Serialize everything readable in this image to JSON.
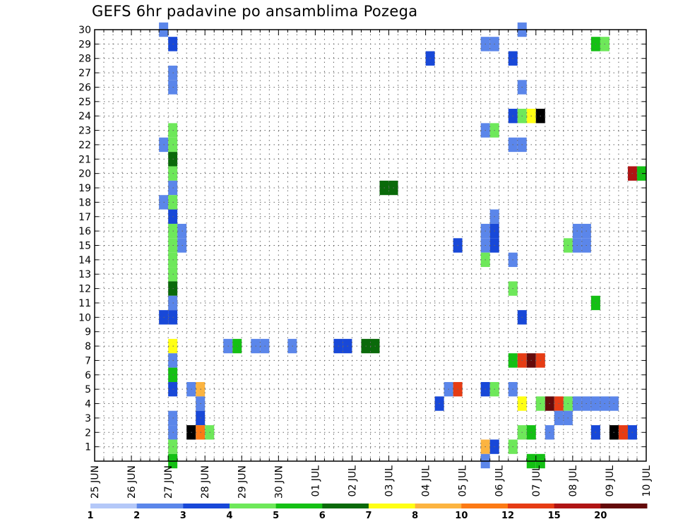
{
  "chart_data": {
    "type": "heatmap",
    "title": "GEFS 6hr padavine po ansamblima Pozega",
    "xlabel": "",
    "ylabel": "",
    "x_ticks": [
      "25 JUN",
      "26 JUN",
      "27 JUN",
      "28 JUN",
      "29 JUN",
      "30 JUN",
      "01 JUL",
      "02 JUL",
      "03 JUL",
      "04 JUL",
      "05 JUL",
      "06 JUL",
      "07 JUL",
      "08 JUL",
      "09 JUL",
      "10 JUL"
    ],
    "y_ticks": [
      "1",
      "2",
      "3",
      "4",
      "5",
      "6",
      "7",
      "8",
      "9",
      "10",
      "11",
      "12",
      "13",
      "14",
      "15",
      "16",
      "17",
      "18",
      "19",
      "20",
      "21",
      "22",
      "23",
      "24",
      "25",
      "26",
      "27",
      "28",
      "29",
      "30"
    ],
    "xlim_steps": [
      0,
      60
    ],
    "ylim": [
      0,
      30
    ],
    "grid": true,
    "legend": {
      "placement": "bottom",
      "labels": [
        "1",
        "2",
        "3",
        "4",
        "5",
        "6",
        "7",
        "8",
        "10",
        "12",
        "15",
        "20"
      ],
      "colors": [
        "#b4c8f8",
        "#5b86ea",
        "#1848d8",
        "#6ee85a",
        "#14c014",
        "#0a6a0a",
        "#ffff14",
        "#fcb440",
        "#fc7a14",
        "#e63c14",
        "#b01414",
        "#640a0a"
      ]
    },
    "cells": [
      [
        7.5,
        30,
        1
      ],
      [
        8.5,
        29,
        2
      ],
      [
        8.5,
        27,
        1
      ],
      [
        8.5,
        26,
        1
      ],
      [
        8.5,
        23,
        3
      ],
      [
        7.5,
        22,
        1
      ],
      [
        8.5,
        22,
        3
      ],
      [
        8.5,
        21,
        5
      ],
      [
        8.5,
        20,
        3
      ],
      [
        8.5,
        19,
        1
      ],
      [
        7.5,
        18,
        1
      ],
      [
        8.5,
        18,
        3
      ],
      [
        8.5,
        17,
        2
      ],
      [
        8.5,
        16,
        3
      ],
      [
        9.5,
        16,
        1
      ],
      [
        8.5,
        15,
        3
      ],
      [
        9.5,
        15,
        1
      ],
      [
        8.5,
        14,
        3
      ],
      [
        8.5,
        13,
        3
      ],
      [
        8.5,
        12,
        5
      ],
      [
        8.5,
        11,
        1
      ],
      [
        7.5,
        10,
        2
      ],
      [
        8.5,
        10,
        2
      ],
      [
        8.5,
        8,
        6
      ],
      [
        8.5,
        7,
        1
      ],
      [
        8.5,
        6,
        4
      ],
      [
        8.5,
        5,
        2
      ],
      [
        8.5,
        3,
        1
      ],
      [
        8.5,
        2,
        1
      ],
      [
        8.5,
        1,
        3
      ],
      [
        8.5,
        0,
        4
      ],
      [
        10.5,
        5,
        1
      ],
      [
        11.5,
        5,
        7
      ],
      [
        11.5,
        4,
        1
      ],
      [
        11.5,
        3,
        2
      ],
      [
        10.5,
        2,
        12
      ],
      [
        11.5,
        2,
        8
      ],
      [
        12.5,
        2,
        3
      ],
      [
        14.5,
        8,
        1
      ],
      [
        15.5,
        8,
        4
      ],
      [
        17.5,
        8,
        1
      ],
      [
        18.5,
        8,
        1
      ],
      [
        21.5,
        8,
        1
      ],
      [
        26.5,
        8,
        2
      ],
      [
        27.5,
        8,
        2
      ],
      [
        29.5,
        8,
        5
      ],
      [
        30.5,
        8,
        5
      ],
      [
        31.5,
        19,
        5
      ],
      [
        32.5,
        19,
        5
      ],
      [
        36.5,
        28,
        2
      ],
      [
        37.5,
        4,
        2
      ],
      [
        39.5,
        15,
        2
      ],
      [
        38.5,
        5,
        1
      ],
      [
        39.5,
        5,
        9
      ],
      [
        42.5,
        29,
        1
      ],
      [
        43.5,
        29,
        1
      ],
      [
        42.5,
        23,
        1
      ],
      [
        43.5,
        23,
        3
      ],
      [
        42.5,
        16,
        1
      ],
      [
        43.5,
        16,
        2
      ],
      [
        42.5,
        15,
        1
      ],
      [
        43.5,
        15,
        2
      ],
      [
        43.5,
        17,
        1
      ],
      [
        42.5,
        14,
        3
      ],
      [
        42.5,
        5,
        2
      ],
      [
        43.5,
        5,
        3
      ],
      [
        42.5,
        1,
        7
      ],
      [
        43.5,
        1,
        2
      ],
      [
        42.5,
        0,
        1
      ],
      [
        45.5,
        28,
        2
      ],
      [
        46.5,
        30,
        1
      ],
      [
        46.5,
        26,
        1
      ],
      [
        45.5,
        24,
        2
      ],
      [
        46.5,
        24,
        3
      ],
      [
        47.5,
        24,
        6
      ],
      [
        48.5,
        24,
        12
      ],
      [
        45.5,
        22,
        1
      ],
      [
        46.5,
        22,
        1
      ],
      [
        45.5,
        14,
        1
      ],
      [
        45.5,
        12,
        3
      ],
      [
        46.5,
        10,
        2
      ],
      [
        45.5,
        7,
        4
      ],
      [
        46.5,
        7,
        9
      ],
      [
        47.5,
        7,
        11
      ],
      [
        48.5,
        7,
        9
      ],
      [
        45.5,
        5,
        1
      ],
      [
        46.5,
        4,
        6
      ],
      [
        48.5,
        4,
        3
      ],
      [
        49.5,
        4,
        11
      ],
      [
        50.5,
        4,
        9
      ],
      [
        51.5,
        4,
        3
      ],
      [
        52.5,
        4,
        1
      ],
      [
        53.5,
        4,
        1
      ],
      [
        54.5,
        4,
        1
      ],
      [
        55.5,
        4,
        1
      ],
      [
        56.5,
        4,
        1
      ],
      [
        50.5,
        3,
        1
      ],
      [
        51.5,
        3,
        1
      ],
      [
        46.5,
        2,
        3
      ],
      [
        47.5,
        2,
        4
      ],
      [
        49.5,
        2,
        1
      ],
      [
        45.5,
        1,
        3
      ],
      [
        47.5,
        0,
        4
      ],
      [
        48.5,
        0,
        4
      ],
      [
        51.5,
        15,
        3
      ],
      [
        52.5,
        15,
        1
      ],
      [
        53.5,
        15,
        1
      ],
      [
        52.5,
        16,
        1
      ],
      [
        53.5,
        16,
        1
      ],
      [
        54.5,
        29,
        4
      ],
      [
        55.5,
        29,
        3
      ],
      [
        54.5,
        11,
        4
      ],
      [
        54.5,
        2,
        2
      ],
      [
        56.5,
        2,
        12
      ],
      [
        57.5,
        2,
        9
      ],
      [
        58.5,
        2,
        2
      ],
      [
        58.5,
        20,
        10
      ],
      [
        59.5,
        20,
        4
      ]
    ]
  }
}
